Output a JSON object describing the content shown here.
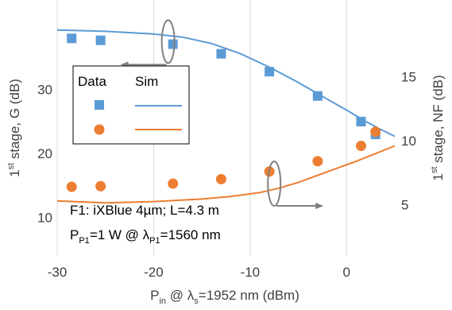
{
  "chart_data": {
    "type": "scatter",
    "xlabel": {
      "main": "P",
      "main_sub": "in",
      "mid": " @ λ",
      "mid_sub": "s",
      "tail": "=1952 nm (dBm)"
    },
    "ylabel_left": {
      "prefix": "1",
      "sup": "st",
      "rest": " stage, G (dB)"
    },
    "ylabel_right": {
      "prefix": "1",
      "sup": "st",
      "rest": " stage, NF (dB)"
    },
    "xlim": [
      -30,
      5
    ],
    "ylim_left": [
      4,
      44
    ],
    "ylim_right": [
      1,
      21
    ],
    "x_ticks": [
      -30,
      -20,
      -10,
      0
    ],
    "x_tick_labels": [
      "-30",
      "-20",
      "-10",
      "0"
    ],
    "y_left_ticks": [
      10,
      20,
      30
    ],
    "y_left_tick_labels": [
      "10",
      "20",
      "30"
    ],
    "y_right_ticks": [
      5,
      10,
      15
    ],
    "y_right_tick_labels": [
      "5",
      "10",
      "15"
    ],
    "grid": "vertical",
    "legend": {
      "position": "left-middle",
      "col_data": "Data",
      "col_sim": "Sim"
    },
    "series": [
      {
        "kind": "data",
        "axis": "left",
        "marker": "square",
        "color": "#5B9BD5",
        "x": [
          -28.5,
          -25.5,
          -18,
          -13,
          -8,
          -3,
          1.5,
          3
        ],
        "y": [
          38,
          37.7,
          37.1,
          35.6,
          32.8,
          29,
          25,
          23
        ]
      },
      {
        "kind": "sim",
        "axis": "left",
        "color": "#5B9BD5",
        "x": [
          -30,
          -25,
          -20,
          -17,
          -14,
          -11,
          -8,
          -5,
          -2,
          0,
          2,
          3.5,
          5
        ],
        "y": [
          39.3,
          39.1,
          38.7,
          38.2,
          37.2,
          35.6,
          33.5,
          31.1,
          28.5,
          26.8,
          25,
          23.8,
          22.7
        ]
      },
      {
        "kind": "data",
        "axis": "right",
        "marker": "circle",
        "color": "#ED7D31",
        "x": [
          -28.5,
          -25.5,
          -18,
          -13,
          -8,
          -3,
          1.5,
          3
        ],
        "y": [
          6.4,
          6.45,
          6.65,
          7.0,
          7.6,
          8.4,
          9.6,
          10.7
        ]
      },
      {
        "kind": "sim",
        "axis": "right",
        "color": "#ED7D31",
        "x": [
          -30,
          -25,
          -20,
          -15,
          -12,
          -9,
          -7,
          -5,
          -3,
          -1,
          1,
          3,
          5
        ],
        "y": [
          5.3,
          5.15,
          5.25,
          5.45,
          5.65,
          5.95,
          6.3,
          6.75,
          7.3,
          7.85,
          8.4,
          9.0,
          9.6
        ]
      }
    ],
    "annotation_lines": [
      {
        "prefix": "F1: iXBlue 4µm; L=4.3 m"
      },
      {
        "p": "P",
        "p_sub": "P1",
        "mid": "=1 W @ λ",
        "l_sub": "P1",
        "tail": "=1560 nm"
      }
    ],
    "arrows": [
      {
        "points_to": "left axis",
        "ellipse_at": {
          "x": -18.5,
          "y": 37.5
        }
      },
      {
        "points_to": "right axis",
        "ellipse_at": {
          "x": -7.5,
          "y": 15.3
        }
      }
    ]
  }
}
